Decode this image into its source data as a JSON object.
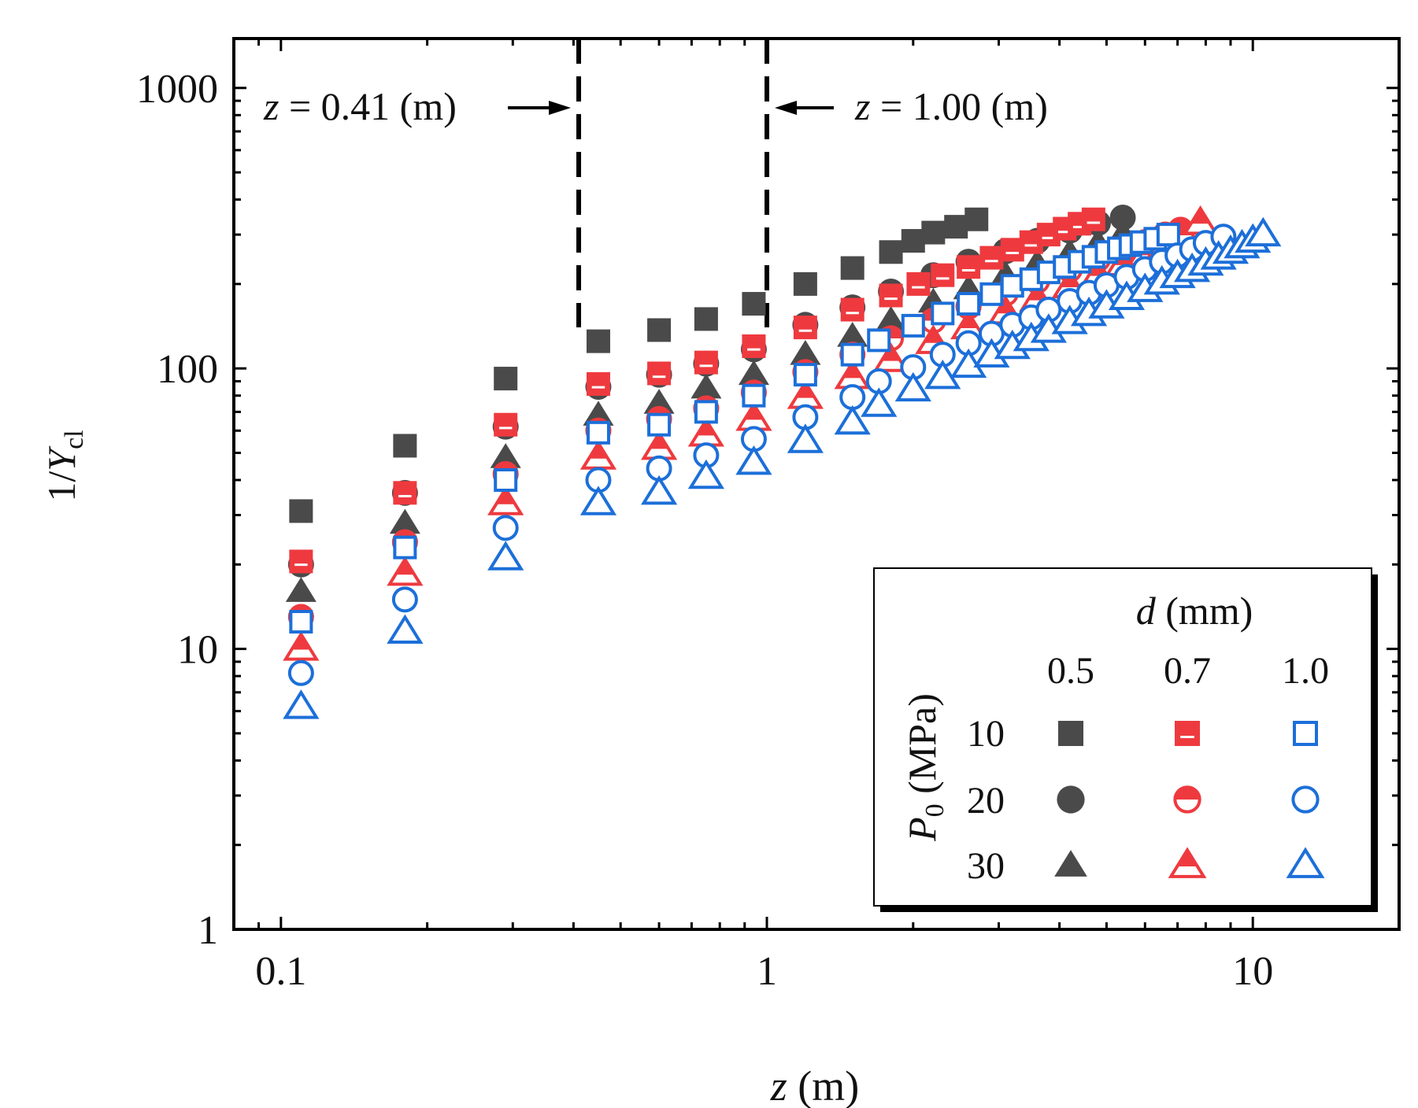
{
  "colors": {
    "d05": "#4a4a4a",
    "d07": "#ee3a3f",
    "d10": "#1c6fd9",
    "axis": "#000000",
    "background": "#ffffff"
  },
  "chart_data": {
    "type": "scatter",
    "x_scale": "log",
    "y_scale": "log",
    "xlim": [
      0.08,
      20
    ],
    "ylim": [
      1,
      1500
    ],
    "xlabel": {
      "var": "z",
      "unit": " (m)"
    },
    "ylabel": {
      "prefix": "1/",
      "var": "Y",
      "sub": "cl"
    },
    "x_ticks": [
      {
        "value": 0.1,
        "label": "0.1"
      },
      {
        "value": 1,
        "label": "1"
      },
      {
        "value": 10,
        "label": "10"
      }
    ],
    "y_ticks": [
      {
        "value": 1,
        "label": "1"
      },
      {
        "value": 10,
        "label": "10"
      },
      {
        "value": 100,
        "label": "100"
      },
      {
        "value": 1000,
        "label": "1000"
      }
    ],
    "reference_lines": [
      {
        "x": 0.41,
        "label_var": "z",
        "label_rest": " = 0.41 (m)",
        "arrow": "right"
      },
      {
        "x": 1.0,
        "label_var": "z",
        "label_rest": " = 1.00 (m)",
        "arrow": "left"
      }
    ],
    "legend": {
      "position": "bottom-right",
      "col_header_var": "d",
      "col_header_unit": " (mm)",
      "row_header_var": "P",
      "row_header_sub": "0",
      "row_header_unit": " (MPa)",
      "columns": [
        "0.5",
        "0.7",
        "1.0"
      ],
      "rows": [
        "10",
        "20",
        "30"
      ]
    },
    "series": [
      {
        "name": "d=0.5 mm, P0=10 MPa",
        "color_key": "d05",
        "marker": "square",
        "fill": "filled",
        "points": [
          [
            0.11,
            31
          ],
          [
            0.18,
            53
          ],
          [
            0.29,
            92
          ],
          [
            0.45,
            125
          ],
          [
            0.6,
            137
          ],
          [
            0.75,
            150
          ],
          [
            0.94,
            170
          ],
          [
            1.2,
            200
          ],
          [
            1.5,
            228
          ],
          [
            1.8,
            260
          ],
          [
            2.0,
            285
          ],
          [
            2.2,
            305
          ],
          [
            2.45,
            320
          ],
          [
            2.7,
            340
          ]
        ]
      },
      {
        "name": "d=0.5 mm, P0=20 MPa",
        "color_key": "d05",
        "marker": "circle",
        "fill": "filled",
        "points": [
          [
            0.11,
            20
          ],
          [
            0.18,
            36
          ],
          [
            0.29,
            62
          ],
          [
            0.45,
            86
          ],
          [
            0.6,
            95
          ],
          [
            0.75,
            104
          ],
          [
            0.94,
            117
          ],
          [
            1.2,
            143
          ],
          [
            1.5,
            165
          ],
          [
            1.8,
            188
          ],
          [
            2.2,
            215
          ],
          [
            2.6,
            240
          ],
          [
            3.1,
            262
          ],
          [
            3.6,
            285
          ],
          [
            4.2,
            310
          ],
          [
            4.8,
            330
          ],
          [
            5.4,
            345
          ]
        ]
      },
      {
        "name": "d=0.5 mm, P0=30 MPa",
        "color_key": "d05",
        "marker": "triangle",
        "fill": "filled",
        "points": [
          [
            0.11,
            16
          ],
          [
            0.18,
            28
          ],
          [
            0.29,
            48
          ],
          [
            0.45,
            68
          ],
          [
            0.6,
            75
          ],
          [
            0.75,
            85
          ],
          [
            0.94,
            95
          ],
          [
            1.2,
            112
          ],
          [
            1.5,
            130
          ],
          [
            1.8,
            148
          ],
          [
            2.2,
            172
          ],
          [
            2.6,
            192
          ],
          [
            3.1,
            215
          ],
          [
            3.6,
            237
          ],
          [
            4.2,
            258
          ],
          [
            4.8,
            280
          ],
          [
            5.4,
            302
          ]
        ]
      },
      {
        "name": "d=0.7 mm, P0=10 MPa",
        "color_key": "d07",
        "marker": "square",
        "fill": "half",
        "points": [
          [
            0.11,
            20.5
          ],
          [
            0.18,
            36
          ],
          [
            0.29,
            63
          ],
          [
            0.45,
            88
          ],
          [
            0.6,
            96
          ],
          [
            0.75,
            105
          ],
          [
            0.94,
            120
          ],
          [
            1.2,
            140
          ],
          [
            1.5,
            162
          ],
          [
            1.8,
            182
          ],
          [
            2.05,
            200
          ],
          [
            2.3,
            215
          ],
          [
            2.6,
            230
          ],
          [
            2.9,
            248
          ],
          [
            3.2,
            265
          ],
          [
            3.5,
            282
          ],
          [
            3.8,
            300
          ],
          [
            4.1,
            315
          ],
          [
            4.4,
            328
          ],
          [
            4.7,
            340
          ]
        ]
      },
      {
        "name": "d=0.7 mm, P0=20 MPa",
        "color_key": "d07",
        "marker": "circle",
        "fill": "half",
        "points": [
          [
            0.11,
            13
          ],
          [
            0.18,
            24
          ],
          [
            0.29,
            42
          ],
          [
            0.45,
            60
          ],
          [
            0.6,
            66
          ],
          [
            0.75,
            72
          ],
          [
            0.94,
            82
          ],
          [
            1.2,
            97
          ],
          [
            1.5,
            112
          ],
          [
            1.8,
            128
          ],
          [
            2.2,
            148
          ],
          [
            2.6,
            166
          ],
          [
            3.1,
            185
          ],
          [
            3.6,
            205
          ],
          [
            4.2,
            225
          ],
          [
            4.8,
            245
          ],
          [
            5.4,
            262
          ],
          [
            6.0,
            282
          ],
          [
            6.6,
            300
          ],
          [
            7.1,
            312
          ]
        ]
      },
      {
        "name": "d=0.7 mm, P0=30 MPa",
        "color_key": "d07",
        "marker": "triangle",
        "fill": "half",
        "points": [
          [
            0.11,
            10
          ],
          [
            0.18,
            18.5
          ],
          [
            0.29,
            33
          ],
          [
            0.45,
            48
          ],
          [
            0.6,
            52
          ],
          [
            0.75,
            58
          ],
          [
            0.94,
            66
          ],
          [
            1.2,
            79
          ],
          [
            1.5,
            93
          ],
          [
            1.8,
            107
          ],
          [
            2.2,
            124
          ],
          [
            2.6,
            140
          ],
          [
            3.1,
            158
          ],
          [
            3.6,
            176
          ],
          [
            4.2,
            196
          ],
          [
            4.8,
            215
          ],
          [
            5.4,
            235
          ],
          [
            6.0,
            255
          ],
          [
            6.6,
            275
          ],
          [
            7.2,
            300
          ],
          [
            7.8,
            330
          ]
        ]
      },
      {
        "name": "d=1.0 mm, P0=10 MPa",
        "color_key": "d10",
        "marker": "square",
        "fill": "open",
        "points": [
          [
            0.11,
            12.5
          ],
          [
            0.18,
            23
          ],
          [
            0.29,
            40
          ],
          [
            0.45,
            59
          ],
          [
            0.6,
            63
          ],
          [
            0.75,
            70
          ],
          [
            0.94,
            80
          ],
          [
            1.2,
            95
          ],
          [
            1.5,
            112
          ],
          [
            1.7,
            126
          ],
          [
            2.0,
            142
          ],
          [
            2.3,
            157
          ],
          [
            2.6,
            170
          ],
          [
            2.9,
            184
          ],
          [
            3.2,
            197
          ],
          [
            3.5,
            208
          ],
          [
            3.8,
            220
          ],
          [
            4.1,
            230
          ],
          [
            4.4,
            240
          ],
          [
            4.7,
            250
          ],
          [
            5.0,
            260
          ],
          [
            5.3,
            268
          ],
          [
            5.6,
            275
          ],
          [
            5.9,
            282
          ],
          [
            6.3,
            290
          ],
          [
            6.7,
            300
          ]
        ]
      },
      {
        "name": "d=1.0 mm, P0=20 MPa",
        "color_key": "d10",
        "marker": "circle",
        "fill": "open",
        "points": [
          [
            0.11,
            8.2
          ],
          [
            0.18,
            15
          ],
          [
            0.29,
            27
          ],
          [
            0.45,
            40
          ],
          [
            0.6,
            44
          ],
          [
            0.75,
            49
          ],
          [
            0.94,
            56
          ],
          [
            1.2,
            67
          ],
          [
            1.5,
            79
          ],
          [
            1.7,
            90
          ],
          [
            2.0,
            101
          ],
          [
            2.3,
            112
          ],
          [
            2.6,
            123
          ],
          [
            2.9,
            133
          ],
          [
            3.2,
            143
          ],
          [
            3.5,
            152
          ],
          [
            3.8,
            162
          ],
          [
            4.2,
            174
          ],
          [
            4.6,
            186
          ],
          [
            5.0,
            198
          ],
          [
            5.5,
            212
          ],
          [
            6.0,
            226
          ],
          [
            6.5,
            240
          ],
          [
            7.0,
            253
          ],
          [
            7.5,
            266
          ],
          [
            8.0,
            280
          ],
          [
            8.7,
            295
          ]
        ]
      },
      {
        "name": "d=1.0 mm, P0=30 MPa",
        "color_key": "d10",
        "marker": "triangle",
        "fill": "open",
        "points": [
          [
            0.11,
            6.2
          ],
          [
            0.18,
            11.5
          ],
          [
            0.29,
            21
          ],
          [
            0.45,
            33
          ],
          [
            0.6,
            36
          ],
          [
            0.75,
            41
          ],
          [
            0.94,
            46
          ],
          [
            1.2,
            55
          ],
          [
            1.5,
            64
          ],
          [
            1.7,
            74
          ],
          [
            2.0,
            84
          ],
          [
            2.3,
            93
          ],
          [
            2.6,
            102
          ],
          [
            2.9,
            111
          ],
          [
            3.2,
            119
          ],
          [
            3.5,
            127
          ],
          [
            3.8,
            136
          ],
          [
            4.2,
            146
          ],
          [
            4.6,
            156
          ],
          [
            5.0,
            166
          ],
          [
            5.5,
            178
          ],
          [
            6.0,
            190
          ],
          [
            6.5,
            202
          ],
          [
            7.0,
            213
          ],
          [
            7.5,
            224
          ],
          [
            8.0,
            236
          ],
          [
            8.5,
            248
          ],
          [
            9.0,
            260
          ],
          [
            9.5,
            272
          ],
          [
            10.0,
            285
          ],
          [
            10.5,
            300
          ]
        ]
      }
    ]
  }
}
